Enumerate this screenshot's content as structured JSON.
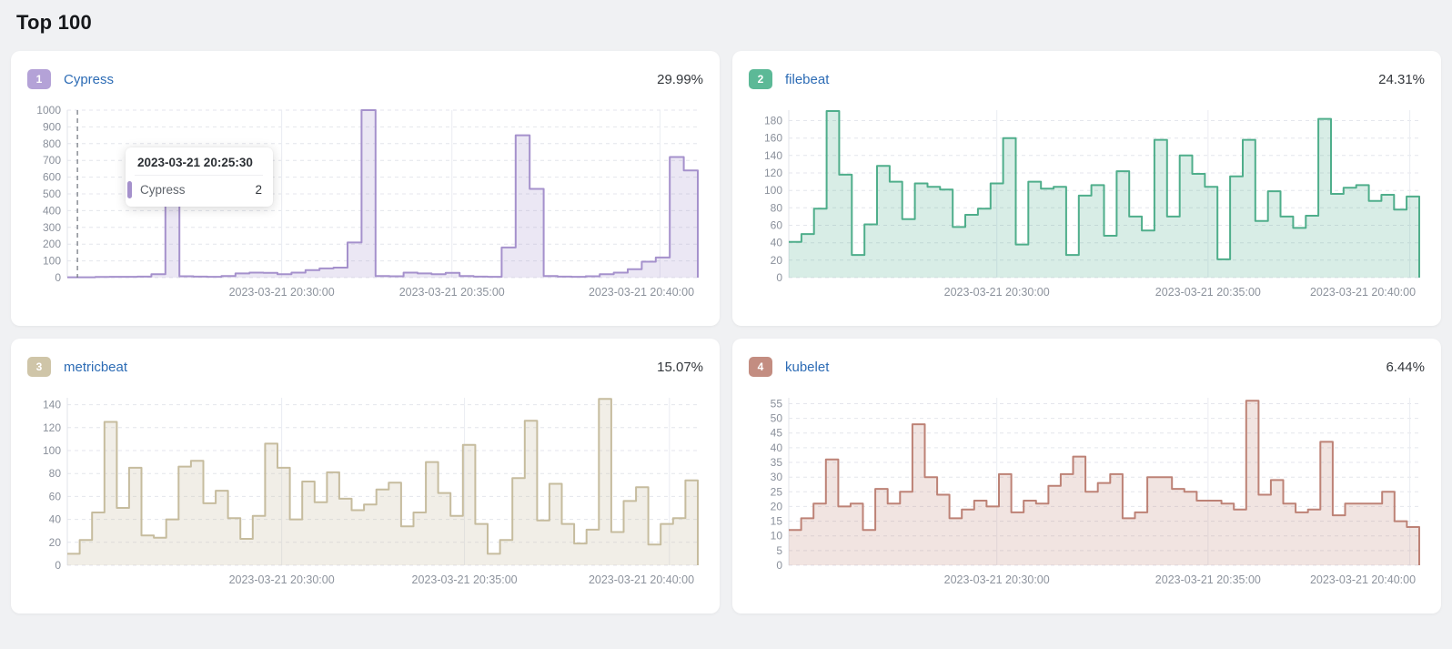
{
  "page": {
    "title": "Top 100"
  },
  "tooltip": {
    "title": "2023-03-21 20:25:30",
    "series_label": "Cypress",
    "value": "2"
  },
  "cards": [
    {
      "rank": "1",
      "name": "Cypress",
      "percent": "29.99%",
      "badge_color": "#b4a2d7",
      "line_color": "#a591cc",
      "fill_color": "rgba(165,145,204,0.22)"
    },
    {
      "rank": "2",
      "name": "filebeat",
      "percent": "24.31%",
      "badge_color": "#5cb997",
      "line_color": "#4fae8b",
      "fill_color": "rgba(79,174,139,0.22)"
    },
    {
      "rank": "3",
      "name": "metricbeat",
      "percent": "15.07%",
      "badge_color": "#cfc5a8",
      "line_color": "#c6bc9e",
      "fill_color": "rgba(198,188,158,0.25)"
    },
    {
      "rank": "4",
      "name": "kubelet",
      "percent": "6.44%",
      "badge_color": "#c38d81",
      "line_color": "#bd8276",
      "fill_color": "rgba(189,130,118,0.22)"
    }
  ],
  "chart_data": [
    {
      "type": "area",
      "step": true,
      "series_name": "Cypress",
      "values": [
        2,
        2,
        4,
        5,
        5,
        6,
        20,
        520,
        8,
        6,
        5,
        10,
        25,
        30,
        28,
        20,
        30,
        45,
        55,
        60,
        210,
        1000,
        10,
        8,
        30,
        25,
        20,
        28,
        10,
        6,
        5,
        180,
        850,
        530,
        10,
        6,
        5,
        8,
        20,
        30,
        50,
        95,
        120,
        720,
        640
      ],
      "y_ticks": [
        0,
        100,
        200,
        300,
        400,
        500,
        600,
        700,
        800,
        900,
        1000
      ],
      "ylim": [
        0,
        1000
      ],
      "x_ticks": [
        {
          "label": "2023-03-21 20:30:00",
          "f": 0.34
        },
        {
          "label": "2023-03-21 20:35:00",
          "f": 0.61
        },
        {
          "label": "2023-03-21 20:40:00",
          "f": 0.94
        }
      ],
      "cursor_f": 0.016,
      "grid": "dashed-horizontal, solid-vertical",
      "legend": "none"
    },
    {
      "type": "area",
      "step": true,
      "series_name": "filebeat",
      "values": [
        41,
        50,
        79,
        191,
        118,
        26,
        61,
        128,
        110,
        67,
        108,
        104,
        101,
        58,
        72,
        79,
        108,
        160,
        38,
        110,
        102,
        104,
        26,
        94,
        106,
        48,
        122,
        70,
        54,
        158,
        70,
        140,
        119,
        104,
        21,
        116,
        158,
        65,
        99,
        70,
        57,
        71,
        182,
        96,
        103,
        106,
        88,
        95,
        78,
        93
      ],
      "y_ticks": [
        0,
        20,
        40,
        60,
        80,
        100,
        120,
        140,
        160,
        180
      ],
      "ylim": [
        0,
        192
      ],
      "x_ticks": [
        {
          "label": "2023-03-21 20:30:00",
          "f": 0.33
        },
        {
          "label": "2023-03-21 20:35:00",
          "f": 0.665
        },
        {
          "label": "2023-03-21 20:40:00",
          "f": 0.985
        }
      ],
      "cursor_f": null,
      "grid": "dashed-horizontal, solid-vertical",
      "legend": "none"
    },
    {
      "type": "area",
      "step": true,
      "series_name": "metricbeat",
      "values": [
        10,
        22,
        46,
        125,
        50,
        85,
        26,
        24,
        40,
        86,
        91,
        54,
        65,
        41,
        23,
        43,
        106,
        85,
        40,
        73,
        55,
        81,
        58,
        48,
        53,
        66,
        72,
        34,
        46,
        90,
        63,
        43,
        105,
        36,
        10,
        22,
        76,
        126,
        39,
        71,
        36,
        19,
        31,
        145,
        29,
        56,
        68,
        18,
        36,
        41,
        74
      ],
      "y_ticks": [
        0,
        20,
        40,
        60,
        80,
        100,
        120,
        140
      ],
      "ylim": [
        0,
        146
      ],
      "x_ticks": [
        {
          "label": "2023-03-21 20:30:00",
          "f": 0.34
        },
        {
          "label": "2023-03-21 20:35:00",
          "f": 0.63
        },
        {
          "label": "2023-03-21 20:40:00",
          "f": 0.955
        }
      ],
      "cursor_f": null,
      "grid": "dashed-horizontal, solid-vertical",
      "legend": "none"
    },
    {
      "type": "area",
      "step": true,
      "series_name": "kubelet",
      "values": [
        12,
        16,
        21,
        36,
        20,
        21,
        12,
        26,
        21,
        25,
        48,
        30,
        24,
        16,
        19,
        22,
        20,
        31,
        18,
        22,
        21,
        27,
        31,
        37,
        25,
        28,
        31,
        16,
        18,
        30,
        30,
        26,
        25,
        22,
        22,
        21,
        19,
        56,
        24,
        29,
        21,
        18,
        19,
        42,
        17,
        21,
        21,
        21,
        25,
        15,
        13
      ],
      "y_ticks": [
        0,
        5,
        10,
        15,
        20,
        25,
        30,
        35,
        40,
        45,
        50,
        55
      ],
      "ylim": [
        0,
        57
      ],
      "x_ticks": [
        {
          "label": "2023-03-21 20:30:00",
          "f": 0.33
        },
        {
          "label": "2023-03-21 20:35:00",
          "f": 0.665
        },
        {
          "label": "2023-03-21 20:40:00",
          "f": 0.985
        }
      ],
      "cursor_f": null,
      "grid": "dashed-horizontal, solid-vertical",
      "legend": "none"
    }
  ]
}
